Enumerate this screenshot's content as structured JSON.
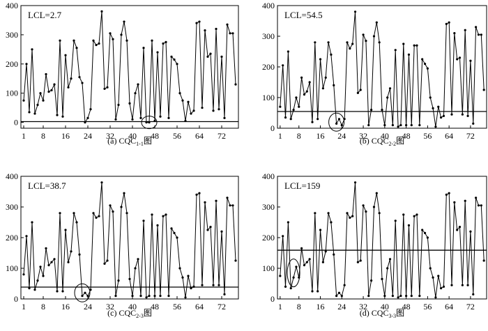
{
  "chart_data": [
    {
      "type": "line",
      "caption": "(a) CQC",
      "caption_sub": "1-1",
      "caption_suffix": "图",
      "annotation": "LCL=2.7",
      "lcl": 2.7,
      "highlight": {
        "x": 46,
        "y": 0
      },
      "xticks": [
        1,
        8,
        16,
        24,
        32,
        40,
        48,
        56,
        64,
        72
      ],
      "yticks": [
        0,
        100,
        200,
        300,
        400
      ],
      "xlim": [
        0,
        78
      ],
      "ylim": [
        -20,
        400
      ],
      "x": [
        1,
        2,
        3,
        4,
        5,
        6,
        7,
        8,
        9,
        10,
        11,
        12,
        13,
        14,
        15,
        16,
        17,
        18,
        19,
        20,
        21,
        22,
        23,
        24,
        25,
        26,
        27,
        28,
        29,
        30,
        31,
        32,
        33,
        34,
        35,
        36,
        37,
        38,
        39,
        40,
        41,
        42,
        43,
        44,
        45,
        46,
        47,
        48,
        49,
        50,
        51,
        52,
        53,
        54,
        55,
        56,
        57,
        58,
        59,
        60,
        61,
        62,
        63,
        64,
        65,
        66,
        67,
        68,
        69,
        70,
        71,
        72,
        73,
        74,
        75,
        76,
        77
      ],
      "y": [
        75,
        200,
        35,
        250,
        30,
        60,
        100,
        75,
        165,
        105,
        110,
        130,
        25,
        280,
        20,
        230,
        120,
        150,
        280,
        255,
        155,
        135,
        0,
        15,
        45,
        280,
        265,
        270,
        380,
        115,
        120,
        305,
        285,
        10,
        60,
        300,
        345,
        280,
        65,
        10,
        100,
        130,
        15,
        255,
        0,
        0,
        280,
        5,
        240,
        20,
        270,
        275,
        15,
        225,
        215,
        200,
        100,
        75,
        5,
        70,
        30,
        40,
        340,
        345,
        50,
        315,
        225,
        235,
        40,
        320,
        45,
        225,
        15,
        335,
        305,
        305,
        130
      ]
    },
    {
      "type": "line",
      "caption": "(b) CQC",
      "caption_sub": "2-2",
      "caption_suffix": "图",
      "annotation": "LCL=54.5",
      "lcl": 54.5,
      "highlight": {
        "x": 22,
        "y": 20
      },
      "xticks": [
        1,
        8,
        16,
        24,
        32,
        40,
        48,
        56,
        64,
        72
      ],
      "yticks": [
        0,
        100,
        200,
        300,
        400
      ],
      "xlim": [
        0,
        78
      ],
      "ylim": [
        0,
        400
      ],
      "x": [
        1,
        2,
        3,
        4,
        5,
        6,
        7,
        8,
        9,
        10,
        11,
        12,
        13,
        14,
        15,
        16,
        17,
        18,
        19,
        20,
        21,
        22,
        23,
        24,
        25,
        26,
        27,
        28,
        29,
        30,
        31,
        32,
        33,
        34,
        35,
        36,
        37,
        38,
        39,
        40,
        41,
        42,
        43,
        44,
        45,
        46,
        47,
        48,
        49,
        50,
        51,
        52,
        53,
        54,
        55,
        56,
        57,
        58,
        59,
        60,
        61,
        62,
        63,
        64,
        65,
        66,
        67,
        68,
        69,
        70,
        71,
        72,
        73,
        74,
        75,
        76,
        77
      ],
      "y": [
        70,
        205,
        35,
        250,
        30,
        60,
        100,
        70,
        165,
        110,
        120,
        150,
        20,
        280,
        30,
        225,
        130,
        165,
        280,
        240,
        140,
        15,
        30,
        10,
        30,
        280,
        260,
        275,
        380,
        115,
        125,
        305,
        285,
        10,
        60,
        300,
        345,
        280,
        60,
        10,
        100,
        130,
        10,
        255,
        5,
        10,
        275,
        10,
        240,
        10,
        270,
        270,
        10,
        225,
        210,
        195,
        100,
        65,
        5,
        70,
        35,
        40,
        340,
        345,
        45,
        310,
        225,
        230,
        45,
        320,
        40,
        220,
        15,
        330,
        305,
        305,
        125
      ]
    },
    {
      "type": "line",
      "caption": "(c) CQC",
      "caption_sub": "2-3",
      "caption_suffix": "图",
      "annotation": "LCL=38.7",
      "lcl": 38.7,
      "highlight": {
        "x": 22,
        "y": 20
      },
      "xticks": [
        1,
        8,
        16,
        24,
        32,
        40,
        48,
        56,
        64,
        72
      ],
      "yticks": [
        0,
        100,
        200,
        300,
        400
      ],
      "xlim": [
        0,
        78
      ],
      "ylim": [
        0,
        400
      ],
      "x": [
        1,
        2,
        3,
        4,
        5,
        6,
        7,
        8,
        9,
        10,
        11,
        12,
        13,
        14,
        15,
        16,
        17,
        18,
        19,
        20,
        21,
        22,
        23,
        24,
        25,
        26,
        27,
        28,
        29,
        30,
        31,
        32,
        33,
        34,
        35,
        36,
        37,
        38,
        39,
        40,
        41,
        42,
        43,
        44,
        45,
        46,
        47,
        48,
        49,
        50,
        51,
        52,
        53,
        54,
        55,
        56,
        57,
        58,
        59,
        60,
        61,
        62,
        63,
        64,
        65,
        66,
        67,
        68,
        69,
        70,
        71,
        72,
        73,
        74,
        75,
        76,
        77
      ],
      "y": [
        80,
        205,
        35,
        250,
        30,
        60,
        105,
        75,
        165,
        110,
        120,
        130,
        25,
        280,
        25,
        225,
        120,
        155,
        280,
        250,
        145,
        10,
        20,
        10,
        30,
        280,
        265,
        270,
        380,
        115,
        125,
        305,
        285,
        10,
        60,
        300,
        345,
        280,
        65,
        10,
        100,
        130,
        10,
        255,
        5,
        10,
        275,
        10,
        240,
        10,
        270,
        275,
        10,
        230,
        215,
        200,
        100,
        70,
        5,
        75,
        35,
        40,
        340,
        345,
        45,
        315,
        225,
        235,
        45,
        320,
        45,
        220,
        15,
        330,
        305,
        305,
        125
      ]
    },
    {
      "type": "line",
      "caption": "(d) CQC",
      "caption_sub": "3-3",
      "caption_suffix": "图",
      "annotation": "LCL=159",
      "lcl": 159,
      "highlight": {
        "x": 6,
        "y": 85
      },
      "xticks": [
        1,
        8,
        16,
        24,
        32,
        40,
        48,
        56,
        64,
        72
      ],
      "yticks": [
        0,
        100,
        200,
        300,
        400
      ],
      "xlim": [
        0,
        78
      ],
      "ylim": [
        0,
        400
      ],
      "x": [
        1,
        2,
        3,
        4,
        5,
        6,
        7,
        8,
        9,
        10,
        11,
        12,
        13,
        14,
        15,
        16,
        17,
        18,
        19,
        20,
        21,
        22,
        23,
        24,
        25,
        26,
        27,
        28,
        29,
        30,
        31,
        32,
        33,
        34,
        35,
        36,
        37,
        38,
        39,
        40,
        41,
        42,
        43,
        44,
        45,
        46,
        47,
        48,
        49,
        50,
        51,
        52,
        53,
        54,
        55,
        56,
        57,
        58,
        59,
        60,
        61,
        62,
        63,
        64,
        65,
        66,
        67,
        68,
        69,
        70,
        71,
        72,
        73,
        74,
        75,
        76,
        77
      ],
      "y": [
        75,
        205,
        40,
        250,
        35,
        70,
        105,
        70,
        165,
        110,
        120,
        130,
        25,
        280,
        25,
        225,
        120,
        155,
        280,
        250,
        145,
        10,
        20,
        10,
        45,
        280,
        265,
        270,
        380,
        120,
        125,
        305,
        285,
        10,
        60,
        300,
        345,
        280,
        65,
        10,
        100,
        130,
        10,
        255,
        5,
        10,
        275,
        10,
        240,
        10,
        270,
        275,
        10,
        225,
        215,
        200,
        100,
        70,
        5,
        75,
        35,
        40,
        340,
        345,
        45,
        315,
        225,
        235,
        45,
        320,
        45,
        220,
        15,
        330,
        305,
        305,
        125
      ]
    }
  ]
}
